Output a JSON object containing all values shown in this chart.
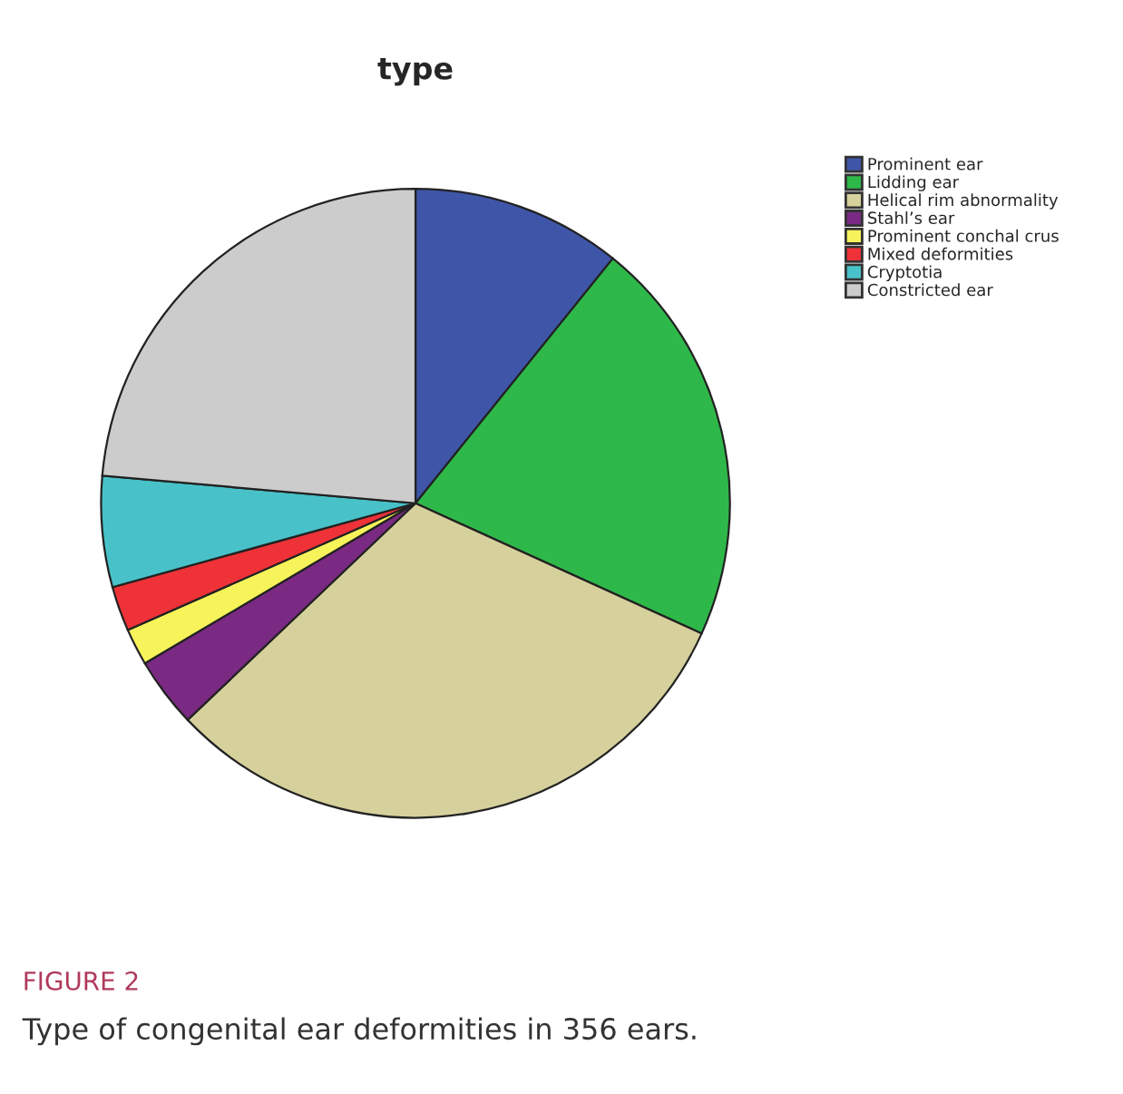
{
  "chart_data": {
    "type": "pie",
    "title": "type",
    "categories": [
      "Prominent ear",
      "Lidding ear",
      "Helical rim abnormality",
      "Stahl’s ear",
      "Prominent conchal crus",
      "Mixed deformities",
      "Cryptotia",
      "Constricted ear"
    ],
    "values": [
      10.8,
      21.0,
      31.1,
      3.6,
      1.9,
      2.3,
      5.7,
      23.6
    ],
    "colors": [
      "#3f56a8",
      "#2fb84a",
      "#d6d09c",
      "#7a2a82",
      "#f7f35a",
      "#ee3238",
      "#48c2c8",
      "#cccccc"
    ],
    "legend": "top right",
    "annotations": [
      "FIGURE 2",
      "Type of congenital ear deformities in 356 ears."
    ]
  }
}
